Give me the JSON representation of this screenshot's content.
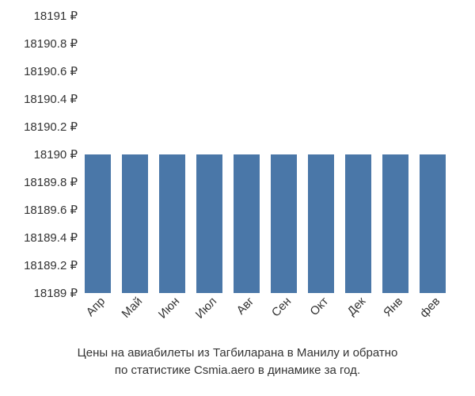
{
  "chart": {
    "type": "bar",
    "background_color": "#ffffff",
    "bar_color": "#4a77a8",
    "text_color": "#333333",
    "axis_fontsize": 15,
    "caption_fontsize": 15,
    "ylim": [
      18189,
      18191
    ],
    "ytick_step": 0.2,
    "y_suffix": " ₽",
    "y_ticks": [
      "18191 ₽",
      "18190.8 ₽",
      "18190.6 ₽",
      "18190.4 ₽",
      "18190.2 ₽",
      "18190 ₽",
      "18189.8 ₽",
      "18189.6 ₽",
      "18189.4 ₽",
      "18189.2 ₽",
      "18189 ₽"
    ],
    "y_tick_values": [
      18191,
      18190.8,
      18190.6,
      18190.4,
      18190.2,
      18190,
      18189.8,
      18189.6,
      18189.4,
      18189.2,
      18189
    ],
    "categories": [
      "Апр",
      "Май",
      "Июн",
      "Июл",
      "Авг",
      "Сен",
      "Окт",
      "Дек",
      "Янв",
      "фев"
    ],
    "values": [
      18190,
      18190,
      18190,
      18190,
      18190,
      18190,
      18190,
      18190,
      18190,
      18190
    ],
    "bar_width": 0.72,
    "x_label_rotation_deg": -46,
    "caption_line1": "Цены на авиабилеты из Тагбиларана в Манилу и обратно",
    "caption_line2": "по статистике Csmia.aero в динамике за год."
  }
}
